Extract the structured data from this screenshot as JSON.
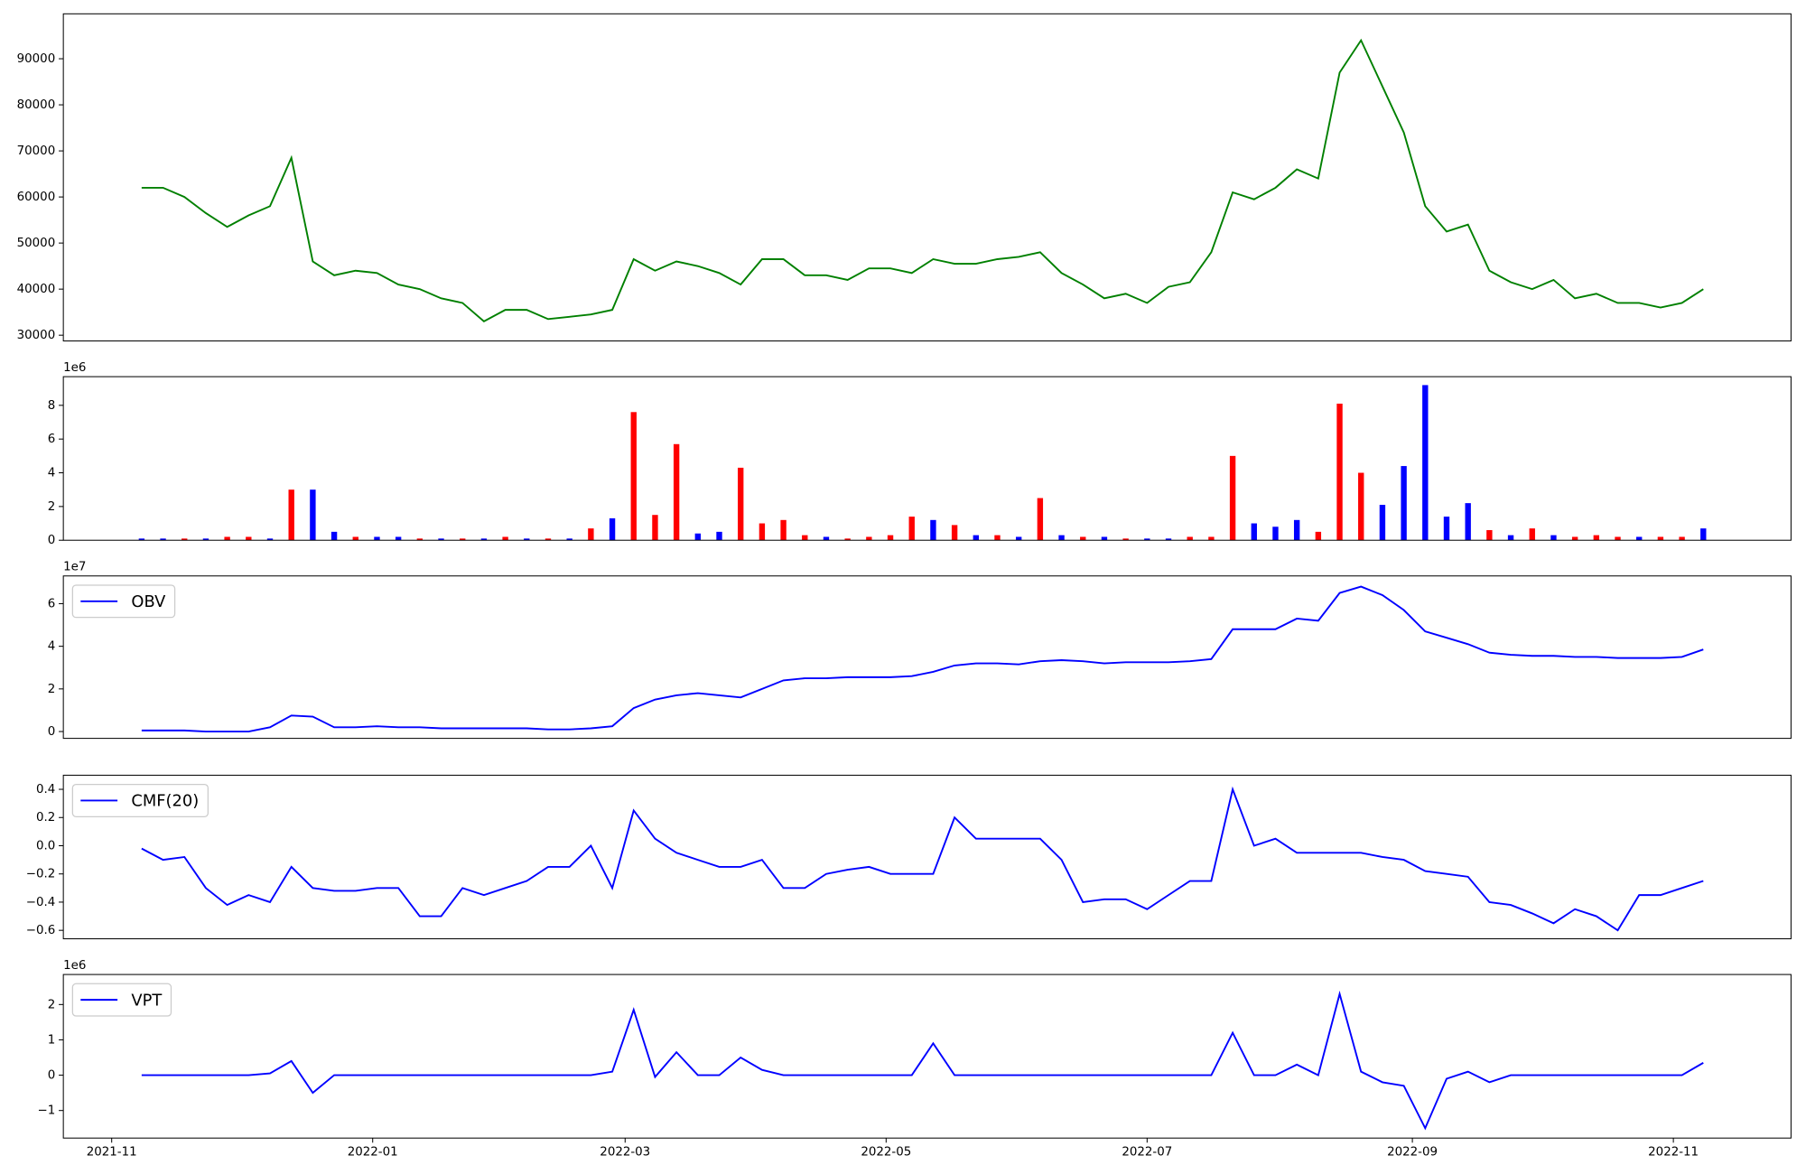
{
  "chart_data": {
    "type": "multi-panel",
    "x": [
      18939,
      18944,
      18949,
      18954,
      18959,
      18964,
      18969,
      18974,
      18979,
      18984,
      18989,
      18994,
      18999,
      19004,
      19009,
      19014,
      19019,
      19024,
      19029,
      19034,
      19039,
      19044,
      19049,
      19054,
      19059,
      19064,
      19069,
      19074,
      19079,
      19084,
      19089,
      19094,
      19099,
      19104,
      19109,
      19114,
      19119,
      19124,
      19129,
      19134,
      19139,
      19144,
      19149,
      19154,
      19159,
      19164,
      19169,
      19174,
      19179,
      19184,
      19189,
      19194,
      19199,
      19204,
      19209,
      19214,
      19219,
      19224,
      19229,
      19234,
      19239,
      19244,
      19249,
      19254,
      19259,
      19264,
      19269,
      19274,
      19279,
      19284,
      19289,
      19294,
      19299,
      19304
    ],
    "xlim": [
      18920.7,
      19324.5
    ],
    "xticks": [
      {
        "value": 18932,
        "label": "2021-11"
      },
      {
        "value": 18993,
        "label": "2022-01"
      },
      {
        "value": 19052,
        "label": "2022-03"
      },
      {
        "value": 19113,
        "label": "2022-05"
      },
      {
        "value": 19174,
        "label": "2022-07"
      },
      {
        "value": 19236,
        "label": "2022-09"
      },
      {
        "value": 19297,
        "label": "2022-11"
      }
    ],
    "panels": [
      {
        "type": "line",
        "ylim": [
          28750,
          99750
        ],
        "yticks": [
          30000,
          40000,
          50000,
          60000,
          70000,
          80000,
          90000
        ],
        "series": [
          {
            "color": "#008000",
            "values": [
              62000,
              62000,
              60000,
              56500,
              53500,
              56000,
              58000,
              68500,
              46000,
              43000,
              44000,
              43500,
              41000,
              40000,
              38000,
              37000,
              33000,
              35500,
              35500,
              33500,
              34000,
              34500,
              35500,
              46500,
              44000,
              46000,
              45000,
              43500,
              41000,
              46500,
              46500,
              43000,
              43000,
              42000,
              44500,
              44500,
              43500,
              46500,
              45500,
              45500,
              46500,
              47000,
              48000,
              43500,
              41000,
              38000,
              39000,
              37000,
              40500,
              41500,
              48000,
              61000,
              59500,
              62000,
              66000,
              64000,
              87000,
              94000,
              84000,
              74000,
              58000,
              52500,
              54000,
              44000,
              41500,
              40000,
              42000,
              38000,
              39000,
              37000,
              37000,
              36000,
              37000,
              40000
            ]
          }
        ]
      },
      {
        "type": "bar",
        "offset_label": "1e6",
        "ylim": [
          0,
          9.7
        ],
        "yticks": [
          0,
          2,
          4,
          6,
          8
        ],
        "series": [
          {
            "color": "#ff0000",
            "values": [
              null,
              null,
              0.1,
              null,
              0.2,
              0.2,
              null,
              3.0,
              null,
              null,
              0.2,
              null,
              null,
              0.1,
              null,
              0.1,
              null,
              0.2,
              null,
              0.1,
              null,
              0.7,
              null,
              7.6,
              1.5,
              5.7,
              null,
              null,
              4.3,
              1.0,
              1.2,
              0.3,
              null,
              0.1,
              0.2,
              0.3,
              1.4,
              null,
              0.9,
              null,
              0.3,
              null,
              2.5,
              null,
              0.2,
              null,
              0.1,
              null,
              null,
              0.2,
              0.2,
              5.0,
              null,
              null,
              null,
              0.5,
              8.1,
              4.0,
              null,
              null,
              null,
              null,
              null,
              0.6,
              null,
              0.7,
              null,
              0.2,
              0.3,
              0.2,
              null,
              0.2,
              0.2,
              null
            ]
          },
          {
            "color": "#0000ff",
            "values": [
              0.1,
              0.1,
              null,
              0.1,
              null,
              null,
              0.1,
              null,
              3.0,
              0.5,
              null,
              0.2,
              0.2,
              null,
              0.1,
              null,
              0.1,
              null,
              0.1,
              null,
              0.1,
              null,
              1.3,
              null,
              null,
              null,
              0.4,
              0.5,
              null,
              null,
              null,
              null,
              0.2,
              null,
              null,
              null,
              null,
              1.2,
              null,
              0.3,
              null,
              0.2,
              null,
              0.3,
              null,
              0.2,
              null,
              0.1,
              0.1,
              null,
              null,
              null,
              1.0,
              0.8,
              1.2,
              null,
              null,
              null,
              2.1,
              4.4,
              9.2,
              1.4,
              2.2,
              null,
              0.3,
              null,
              0.3,
              null,
              null,
              null,
              0.2,
              null,
              null,
              0.7
            ]
          }
        ]
      },
      {
        "type": "line",
        "offset_label": "1e7",
        "legend": "upper left",
        "ylim": [
          -0.32,
          7.3
        ],
        "yticks": [
          0,
          2,
          4,
          6
        ],
        "series": [
          {
            "name": "OBV",
            "color": "#0000ff",
            "values": [
              0.05,
              0.05,
              0.05,
              0,
              0,
              0,
              0.2,
              0.75,
              0.7,
              0.2,
              0.2,
              0.25,
              0.2,
              0.2,
              0.15,
              0.15,
              0.15,
              0.15,
              0.15,
              0.1,
              0.1,
              0.15,
              0.25,
              1.1,
              1.5,
              1.7,
              1.8,
              1.7,
              1.6,
              2.0,
              2.4,
              2.5,
              2.5,
              2.55,
              2.55,
              2.55,
              2.6,
              2.8,
              3.1,
              3.2,
              3.2,
              3.15,
              3.3,
              3.35,
              3.3,
              3.2,
              3.25,
              3.25,
              3.25,
              3.3,
              3.4,
              4.8,
              4.8,
              4.8,
              5.3,
              5.2,
              6.5,
              6.8,
              6.4,
              5.7,
              4.7,
              4.4,
              4.1,
              3.7,
              3.6,
              3.55,
              3.55,
              3.5,
              3.5,
              3.45,
              3.45,
              3.45,
              3.5,
              3.85
            ]
          }
        ]
      },
      {
        "type": "line",
        "legend": "upper left",
        "ylim": [
          -0.66,
          0.5
        ],
        "yticks": [
          {
            "value": -0.6,
            "label": "−0.6"
          },
          {
            "value": -0.4,
            "label": "−0.4"
          },
          {
            "value": -0.2,
            "label": "−0.2"
          },
          {
            "value": 0,
            "label": "0.0"
          },
          0.2,
          0.4
        ],
        "series": [
          {
            "name": "CMF(20)",
            "color": "#0000ff",
            "values": [
              -0.02,
              -0.1,
              -0.08,
              -0.3,
              -0.42,
              -0.35,
              -0.4,
              -0.15,
              -0.3,
              -0.32,
              -0.32,
              -0.3,
              -0.3,
              -0.5,
              -0.5,
              -0.3,
              -0.35,
              -0.3,
              -0.25,
              -0.15,
              -0.15,
              0.0,
              -0.3,
              0.25,
              0.05,
              -0.05,
              -0.1,
              -0.15,
              -0.15,
              -0.1,
              -0.3,
              -0.3,
              -0.2,
              -0.17,
              -0.15,
              -0.2,
              -0.2,
              -0.2,
              0.2,
              0.05,
              0.05,
              0.05,
              0.05,
              -0.1,
              -0.4,
              -0.38,
              -0.38,
              -0.45,
              -0.35,
              -0.25,
              -0.25,
              0.4,
              0.0,
              0.05,
              -0.05,
              -0.05,
              -0.05,
              -0.05,
              -0.08,
              -0.1,
              -0.18,
              -0.2,
              -0.22,
              -0.4,
              -0.42,
              -0.48,
              -0.55,
              -0.45,
              -0.5,
              -0.6,
              -0.35,
              -0.35,
              -0.3,
              -0.25
            ]
          }
        ]
      },
      {
        "type": "line",
        "offset_label": "1e6",
        "legend": "upper left",
        "ylim": [
          -1.78,
          2.85
        ],
        "yticks": [
          {
            "value": -1,
            "label": "−1"
          },
          0,
          1,
          2
        ],
        "series": [
          {
            "name": "VPT",
            "color": "#0000ff",
            "values": [
              0,
              0,
              0,
              0,
              0,
              0,
              0.05,
              0.4,
              -0.5,
              0,
              0,
              0,
              0,
              0,
              0,
              0,
              0,
              0,
              0,
              0,
              0,
              0,
              0.1,
              1.85,
              -0.05,
              0.65,
              0,
              0,
              0.5,
              0.15,
              0,
              0,
              0,
              0,
              0,
              0,
              0,
              0.9,
              0,
              0,
              0,
              0,
              0,
              0,
              0,
              0,
              0,
              0,
              0,
              0,
              0,
              1.2,
              0,
              0,
              0.3,
              0,
              2.3,
              0.1,
              -0.2,
              -0.3,
              -1.5,
              -0.1,
              0.1,
              -0.2,
              0,
              0,
              0,
              0,
              0,
              0,
              0,
              0,
              0,
              0.35
            ]
          }
        ]
      }
    ]
  }
}
